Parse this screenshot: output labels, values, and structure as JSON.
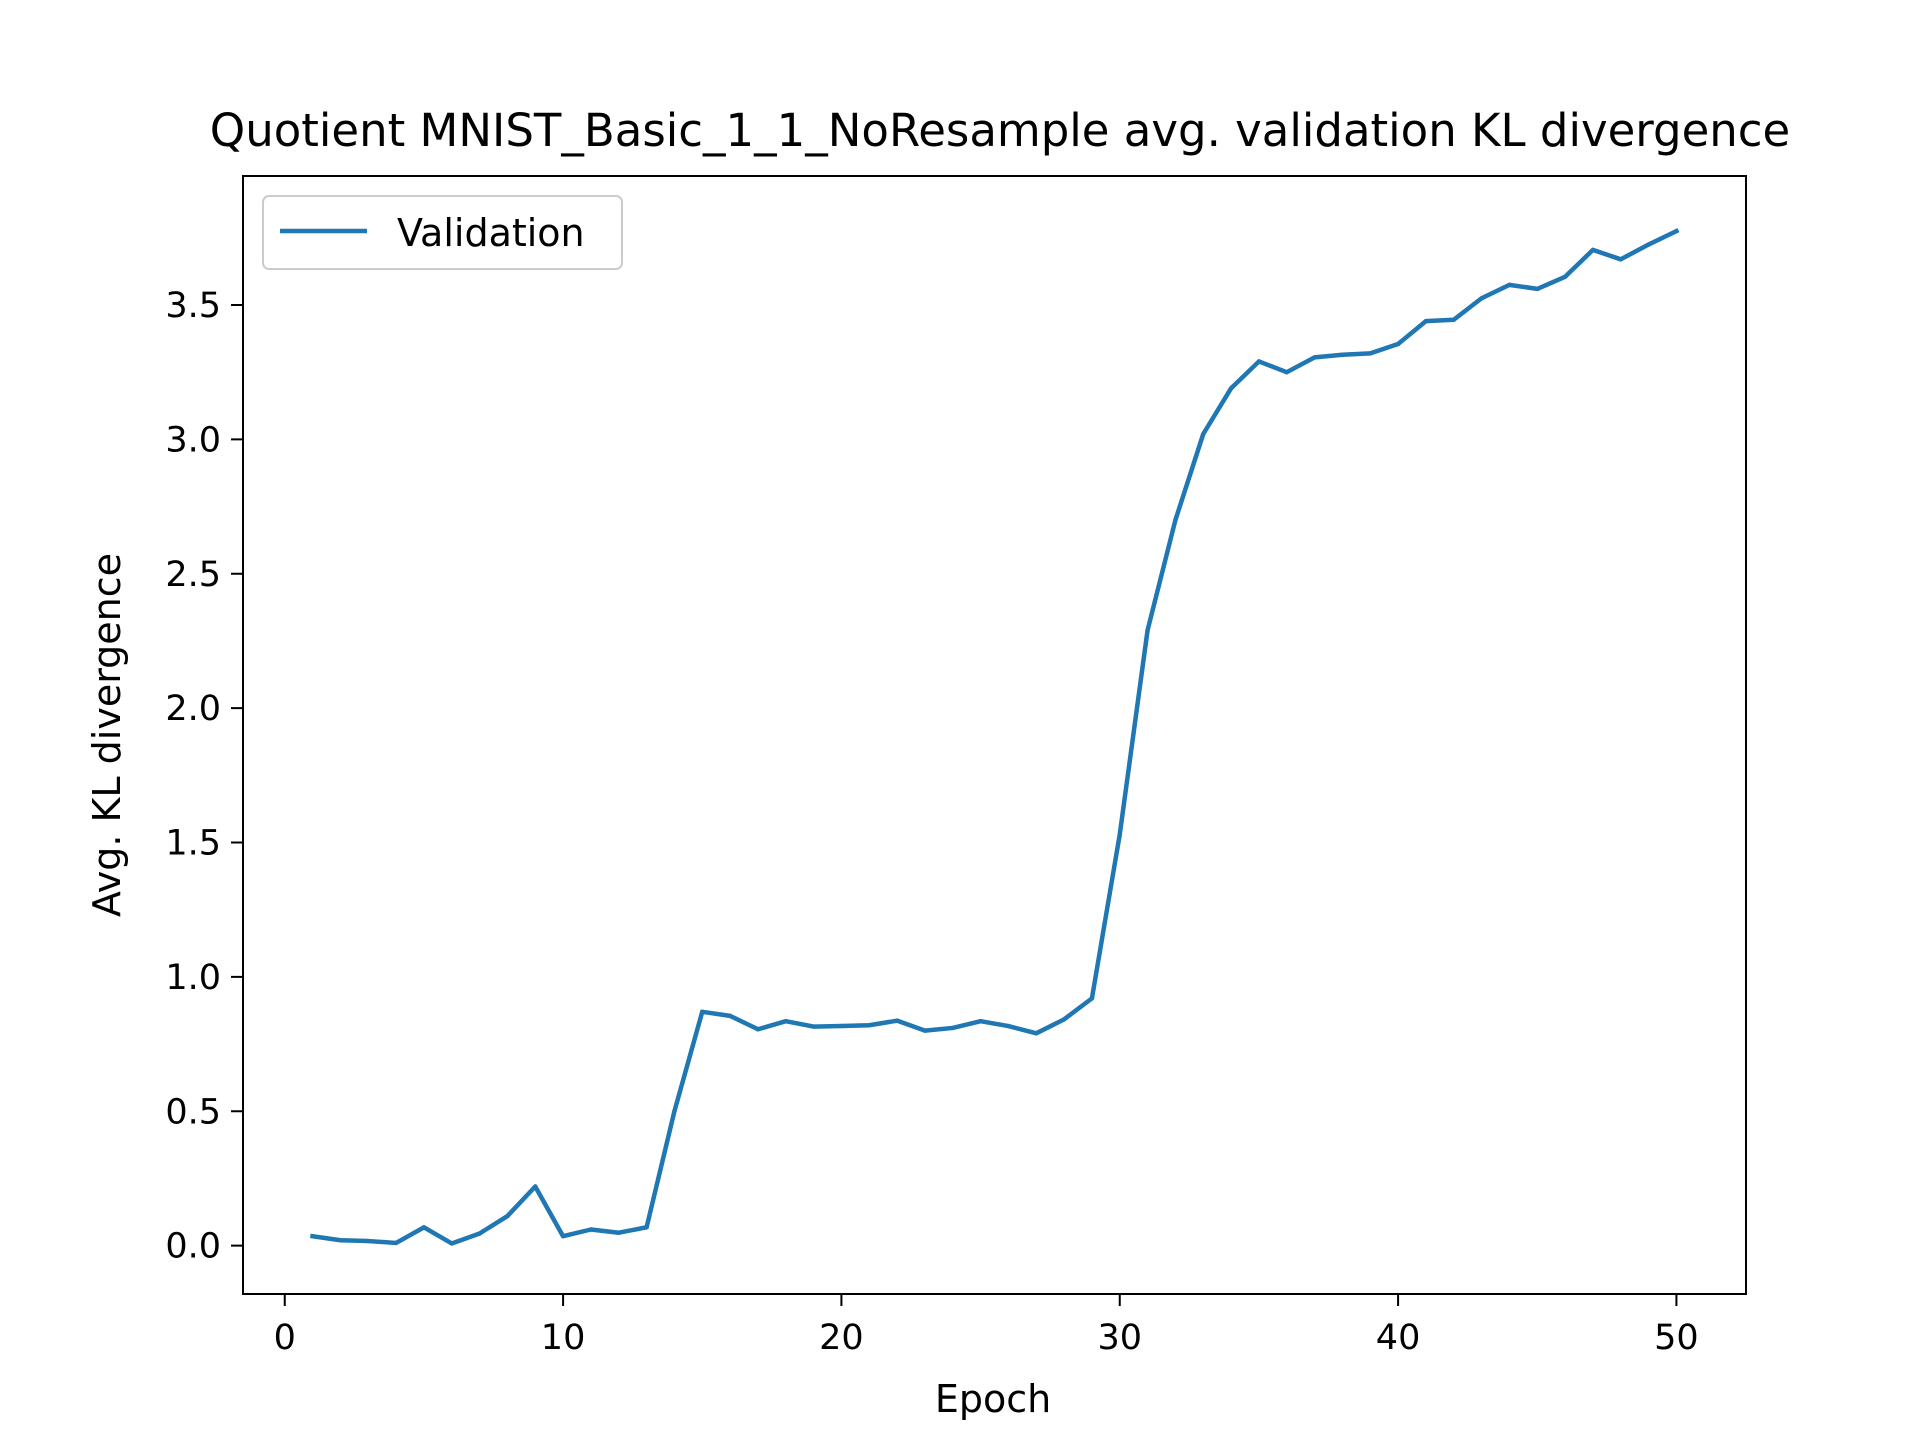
{
  "chart_data": {
    "type": "line",
    "title": "Quotient MNIST_Basic_1_1_NoResample avg. validation KL divergence",
    "xlabel": "Epoch",
    "ylabel": "Avg. KL divergence",
    "xlim": [
      -1.5,
      52.5
    ],
    "ylim": [
      -0.18,
      3.98
    ],
    "xticks": [
      0,
      10,
      20,
      30,
      40,
      50
    ],
    "xtick_labels": [
      "0",
      "10",
      "20",
      "30",
      "40",
      "50"
    ],
    "yticks": [
      0.0,
      0.5,
      1.0,
      1.5,
      2.0,
      2.5,
      3.0,
      3.5
    ],
    "ytick_labels": [
      "0.0",
      "0.5",
      "1.0",
      "1.5",
      "2.0",
      "2.5",
      "3.0",
      "3.5"
    ],
    "grid": false,
    "legend_position": "upper-left",
    "series": [
      {
        "name": "Validation",
        "color": "#1f77b4",
        "x": [
          1,
          2,
          3,
          4,
          5,
          6,
          7,
          8,
          9,
          10,
          11,
          12,
          13,
          14,
          15,
          16,
          17,
          18,
          19,
          20,
          21,
          22,
          23,
          24,
          25,
          26,
          27,
          28,
          29,
          30,
          31,
          32,
          33,
          34,
          35,
          36,
          37,
          38,
          39,
          40,
          41,
          42,
          43,
          44,
          45,
          46,
          47,
          48,
          49,
          50
        ],
        "values": [
          0.035,
          0.02,
          0.017,
          0.01,
          0.068,
          0.008,
          0.045,
          0.11,
          0.22,
          0.035,
          0.06,
          0.048,
          0.068,
          0.5,
          0.87,
          0.855,
          0.805,
          0.835,
          0.815,
          0.817,
          0.82,
          0.837,
          0.8,
          0.81,
          0.835,
          0.817,
          0.79,
          0.842,
          0.92,
          1.53,
          2.29,
          2.7,
          3.02,
          3.19,
          3.29,
          3.25,
          3.305,
          3.315,
          3.32,
          3.355,
          3.44,
          3.445,
          3.525,
          3.575,
          3.56,
          3.605,
          3.705,
          3.67,
          3.725,
          3.775
        ]
      }
    ]
  }
}
